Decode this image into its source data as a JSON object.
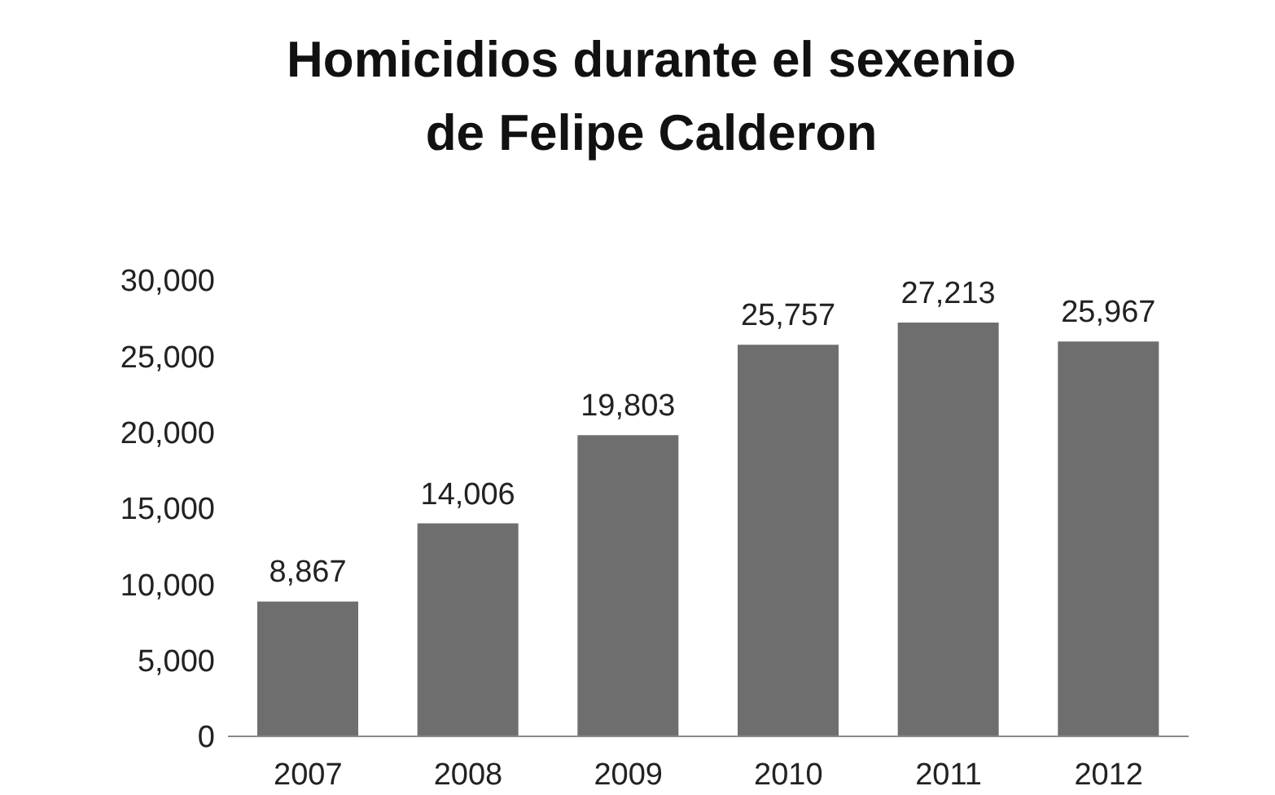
{
  "chart_data": {
    "type": "bar",
    "title": "Homicidios durante el sexenio de Felipe Calderon",
    "categories": [
      "2007",
      "2008",
      "2009",
      "2010",
      "2011",
      "2012"
    ],
    "values": [
      8867,
      14006,
      19803,
      25757,
      27213,
      25967
    ],
    "value_labels": [
      "8,867",
      "14,006",
      "19,803",
      "25,757",
      "27,213",
      "25,967"
    ],
    "color": "#6e6e6e",
    "ylim": [
      0,
      30000
    ],
    "yticks": [
      {
        "value": 0,
        "label": "0"
      },
      {
        "value": 5000,
        "label": "5,000"
      },
      {
        "value": 10000,
        "label": "10,000"
      },
      {
        "value": 15000,
        "label": "15,000"
      },
      {
        "value": 20000,
        "label": "20,000"
      },
      {
        "value": 25000,
        "label": "25,000"
      },
      {
        "value": 30000,
        "label": "30,000"
      }
    ],
    "grid": false,
    "legend": false
  }
}
